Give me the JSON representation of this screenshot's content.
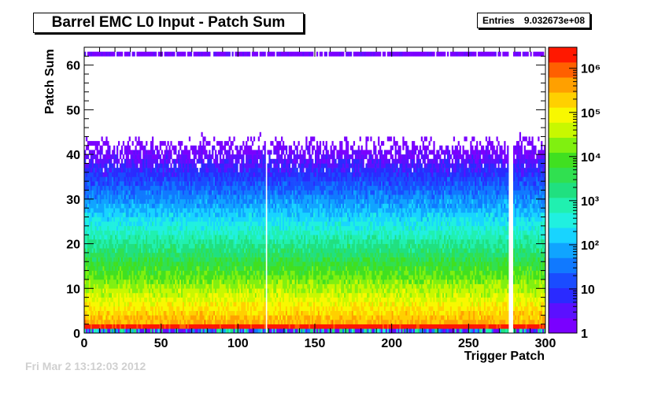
{
  "title": "Barrel EMC L0 Input - Patch Sum",
  "stats": {
    "label": "Entries",
    "value": "9.032673e+08"
  },
  "chart_data": {
    "type": "heatmap",
    "title": "Barrel EMC L0 Input - Patch Sum",
    "xlabel": "Trigger Patch",
    "ylabel": "Patch Sum",
    "xlim": [
      0,
      300
    ],
    "ylim": [
      0,
      64
    ],
    "x_ticks": [
      "0",
      "50",
      "100",
      "150",
      "200",
      "250",
      "300"
    ],
    "y_ticks": [
      "0",
      "10",
      "20",
      "30",
      "40",
      "50",
      "60"
    ],
    "z_scale": "log",
    "z_range": [
      1,
      3000000
    ],
    "z_tick_labels": [
      "1",
      "10",
      "10²",
      "10³",
      "10⁴",
      "10⁵",
      "10⁶"
    ],
    "row_profile_note": "Patch Sum 1–2 ≈ 10⁶ counts per bin; falls ~exponentially to ≈1 by Patch Sum ≈ 45; sparse single counts up to 62; a dense line of ~1–2 counts at Patch Sum 62",
    "hot_row": {
      "patch_sum": 1,
      "count": 2000000
    },
    "empty_patches": [
      118,
      276,
      277,
      278
    ],
    "grid": false,
    "legend": "color-bar-right"
  },
  "colors": {
    "palette": [
      "#7a00ff",
      "#5b10ff",
      "#2a2aff",
      "#1a4cff",
      "#1079ff",
      "#10a4ff",
      "#18d4ff",
      "#20f0e0",
      "#20f0b0",
      "#20e080",
      "#30e050",
      "#40e020",
      "#80f010",
      "#c8f800",
      "#f8f800",
      "#ffd000",
      "#ffa000",
      "#ff6000",
      "#ff1800"
    ],
    "stamp": "#d0d0d0"
  },
  "footer_stamp": "Fri Mar  2 13:12:03 2012"
}
